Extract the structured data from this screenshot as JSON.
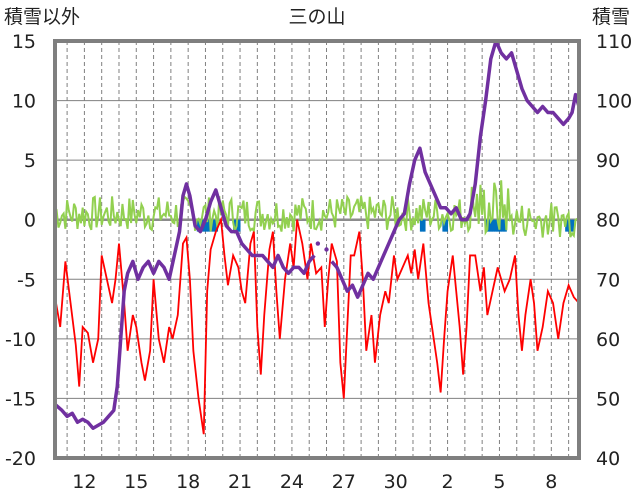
{
  "chart_data": {
    "type": "line",
    "title": "三の山",
    "left_axis_label": "積雪以外",
    "right_axis_label": "積雪",
    "left_ylim": [
      -20,
      15
    ],
    "left_yticks": [
      "15",
      "10",
      "5",
      "0",
      "-5",
      "-10",
      "-15",
      "-20"
    ],
    "right_ylim": [
      40,
      110
    ],
    "right_yticks": [
      "110",
      "100",
      "90",
      "80",
      "70",
      "60",
      "50",
      "40"
    ],
    "x_tick_labels": [
      "12",
      "15",
      "18",
      "21",
      "24",
      "27",
      "30",
      "2",
      "5",
      "8"
    ],
    "x_day_range": [
      10.3,
      40.6
    ],
    "x_tick_days": [
      12,
      15,
      18,
      21,
      24,
      27,
      30,
      33,
      36,
      39
    ],
    "grid": "dashed vertical lines each day, horizontal gridlines at left-axis ticks",
    "colors": {
      "temperature": "#ff0000",
      "snow_depth": "#7030a0",
      "wind": "#92d050",
      "precip": "#0070c0",
      "frame": "#7f7f7f"
    },
    "series": [
      {
        "axis": "left",
        "points": [
          [
            10.3,
            -6.5
          ],
          [
            10.6,
            -9
          ],
          [
            10.9,
            -3.5
          ],
          [
            11.2,
            -7
          ],
          [
            11.5,
            -10.5
          ],
          [
            11.7,
            -14
          ],
          [
            11.9,
            -9
          ],
          [
            12.2,
            -9.5
          ],
          [
            12.5,
            -12
          ],
          [
            12.8,
            -10
          ],
          [
            13.0,
            -3
          ],
          [
            13.3,
            -5
          ],
          [
            13.6,
            -7
          ],
          [
            13.8,
            -5
          ],
          [
            14.0,
            -2
          ],
          [
            14.3,
            -7
          ],
          [
            14.5,
            -11
          ],
          [
            14.8,
            -8
          ],
          [
            15.0,
            -9
          ],
          [
            15.3,
            -12
          ],
          [
            15.5,
            -13.5
          ],
          [
            15.8,
            -11
          ],
          [
            16.0,
            -5
          ],
          [
            16.3,
            -10
          ],
          [
            16.6,
            -12
          ],
          [
            16.9,
            -9
          ],
          [
            17.1,
            -10
          ],
          [
            17.4,
            -8
          ],
          [
            17.7,
            -2
          ],
          [
            17.9,
            -1.5
          ],
          [
            18.1,
            -5
          ],
          [
            18.3,
            -11
          ],
          [
            18.6,
            -15
          ],
          [
            18.9,
            -18
          ],
          [
            19.1,
            -6
          ],
          [
            19.3,
            -2.5
          ],
          [
            19.6,
            -1
          ],
          [
            19.9,
            0
          ],
          [
            20.1,
            -3
          ],
          [
            20.3,
            -5.5
          ],
          [
            20.6,
            -3
          ],
          [
            20.9,
            -4
          ],
          [
            21.1,
            -6
          ],
          [
            21.3,
            -7
          ],
          [
            21.6,
            -2
          ],
          [
            21.8,
            -1
          ],
          [
            22.0,
            -9
          ],
          [
            22.2,
            -13
          ],
          [
            22.4,
            -8
          ],
          [
            22.7,
            -2.5
          ],
          [
            22.9,
            -1
          ],
          [
            23.1,
            -6
          ],
          [
            23.3,
            -10
          ],
          [
            23.6,
            -5
          ],
          [
            23.9,
            -2
          ],
          [
            24.1,
            -4
          ],
          [
            24.3,
            0
          ],
          [
            24.6,
            -2
          ],
          [
            24.9,
            -5
          ],
          [
            25.1,
            -2
          ],
          [
            25.4,
            -4.5
          ],
          [
            25.7,
            -4
          ],
          [
            25.9,
            -9
          ],
          [
            26.1,
            -5
          ],
          [
            26.3,
            -2
          ],
          [
            26.6,
            -3.5
          ],
          [
            26.8,
            -12
          ],
          [
            27.0,
            -15
          ],
          [
            27.2,
            -9
          ],
          [
            27.4,
            -3
          ],
          [
            27.6,
            -3
          ],
          [
            27.9,
            -1
          ],
          [
            28.1,
            -5
          ],
          [
            28.3,
            -11
          ],
          [
            28.6,
            -8
          ],
          [
            28.8,
            -12
          ],
          [
            29.1,
            -8
          ],
          [
            29.4,
            -6
          ],
          [
            29.6,
            -7
          ],
          [
            29.9,
            -3
          ],
          [
            30.1,
            -5
          ],
          [
            30.4,
            -4
          ],
          [
            30.7,
            -3
          ],
          [
            30.9,
            -4.5
          ],
          [
            31.1,
            -2.5
          ],
          [
            31.3,
            -5
          ],
          [
            31.6,
            -2
          ],
          [
            31.9,
            -7
          ],
          [
            32.1,
            -9
          ],
          [
            32.4,
            -12
          ],
          [
            32.6,
            -14.5
          ],
          [
            32.8,
            -10
          ],
          [
            33.0,
            -6
          ],
          [
            33.3,
            -3
          ],
          [
            33.5,
            -6
          ],
          [
            33.7,
            -9
          ],
          [
            33.9,
            -13
          ],
          [
            34.1,
            -9
          ],
          [
            34.3,
            -3
          ],
          [
            34.6,
            -3
          ],
          [
            34.9,
            -6
          ],
          [
            35.1,
            -4
          ],
          [
            35.3,
            -8
          ],
          [
            35.6,
            -6
          ],
          [
            35.9,
            -4
          ],
          [
            36.1,
            -5
          ],
          [
            36.3,
            -6
          ],
          [
            36.6,
            -5
          ],
          [
            36.9,
            -3
          ],
          [
            37.1,
            -8
          ],
          [
            37.3,
            -11
          ],
          [
            37.5,
            -8
          ],
          [
            37.8,
            -5
          ],
          [
            38.0,
            -7
          ],
          [
            38.2,
            -11
          ],
          [
            38.5,
            -9
          ],
          [
            38.8,
            -6
          ],
          [
            39.1,
            -7
          ],
          [
            39.4,
            -10
          ],
          [
            39.7,
            -7
          ],
          [
            40.0,
            -5.5
          ],
          [
            40.3,
            -6.5
          ],
          [
            40.6,
            -7
          ]
        ]
      },
      {
        "axis": "right",
        "points": [
          [
            10.3,
            49
          ],
          [
            10.7,
            48
          ],
          [
            11.0,
            47
          ],
          [
            11.3,
            47.5
          ],
          [
            11.6,
            46
          ],
          [
            11.9,
            46.5
          ],
          [
            12.2,
            46
          ],
          [
            12.5,
            45
          ],
          [
            12.8,
            45.5
          ],
          [
            13.1,
            46
          ],
          [
            13.4,
            47
          ],
          [
            13.7,
            48
          ],
          [
            13.9,
            52
          ],
          [
            14.1,
            60
          ],
          [
            14.3,
            68
          ],
          [
            14.5,
            71
          ],
          [
            14.8,
            73
          ],
          [
            15.1,
            70
          ],
          [
            15.4,
            72
          ],
          [
            15.7,
            73
          ],
          [
            16.0,
            71
          ],
          [
            16.3,
            73
          ],
          [
            16.6,
            72
          ],
          [
            16.9,
            70
          ],
          [
            17.2,
            74
          ],
          [
            17.5,
            78
          ],
          [
            17.7,
            84
          ],
          [
            17.9,
            86
          ],
          [
            18.1,
            84
          ],
          [
            18.4,
            79
          ],
          [
            18.7,
            78
          ],
          [
            19.0,
            80
          ],
          [
            19.3,
            83
          ],
          [
            19.6,
            85
          ],
          [
            19.9,
            82
          ],
          [
            20.2,
            79
          ],
          [
            20.5,
            78
          ],
          [
            20.8,
            78
          ],
          [
            21.1,
            76
          ],
          [
            21.4,
            75
          ],
          [
            21.7,
            74
          ],
          [
            22.0,
            74
          ],
          [
            22.3,
            74
          ],
          [
            22.6,
            73
          ],
          [
            22.9,
            72
          ],
          [
            23.2,
            74
          ],
          [
            23.5,
            72
          ],
          [
            23.8,
            71
          ],
          [
            24.1,
            72
          ],
          [
            24.4,
            72
          ],
          [
            24.7,
            71
          ],
          [
            25.0,
            73
          ],
          [
            25.3,
            74
          ]
        ],
        "gaps": [
          [
            25.5,
            76
          ],
          [
            26.0,
            75
          ]
        ]
      }
    ]
  }
}
